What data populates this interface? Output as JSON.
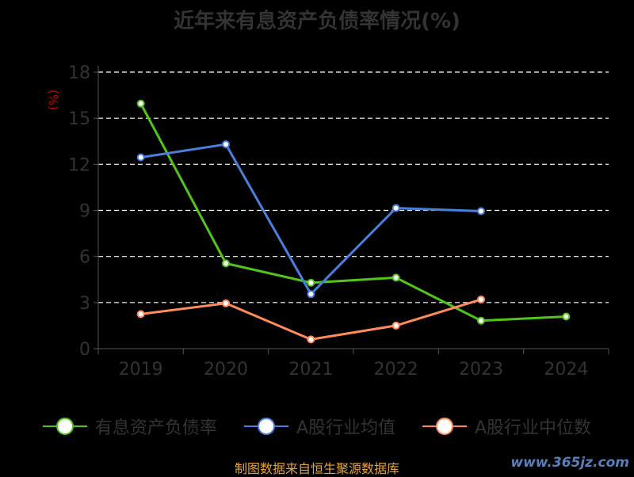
{
  "header": {
    "title": "近年来有息资产负债率情况(%)"
  },
  "footer": {
    "source": "制图数据来自恒生聚源数据库",
    "watermark": "www.365jz.com"
  },
  "chart_data": {
    "type": "line",
    "title": "近年来有息资产负债率情况(%)",
    "ylabel": "(%)",
    "xlabel": "",
    "categories": [
      "2019",
      "2020",
      "2021",
      "2022",
      "2023",
      "2024"
    ],
    "ylim": [
      0,
      18
    ],
    "yticks": [
      0,
      3,
      6,
      9,
      12,
      15,
      18
    ],
    "grid": true,
    "legend_position": "bottom",
    "series": [
      {
        "name": "有息资产负债率",
        "color": "#52c41a",
        "values": [
          15.95,
          5.55,
          4.29,
          4.62,
          1.82,
          2.09
        ]
      },
      {
        "name": "A股行业均值",
        "color": "#4a7fdc",
        "values": [
          12.45,
          13.3,
          3.55,
          9.15,
          8.95,
          null
        ]
      },
      {
        "name": "A股行业中位数",
        "color": "#ff8c5a",
        "values": [
          2.25,
          2.95,
          0.6,
          1.5,
          3.2,
          null
        ]
      }
    ]
  }
}
